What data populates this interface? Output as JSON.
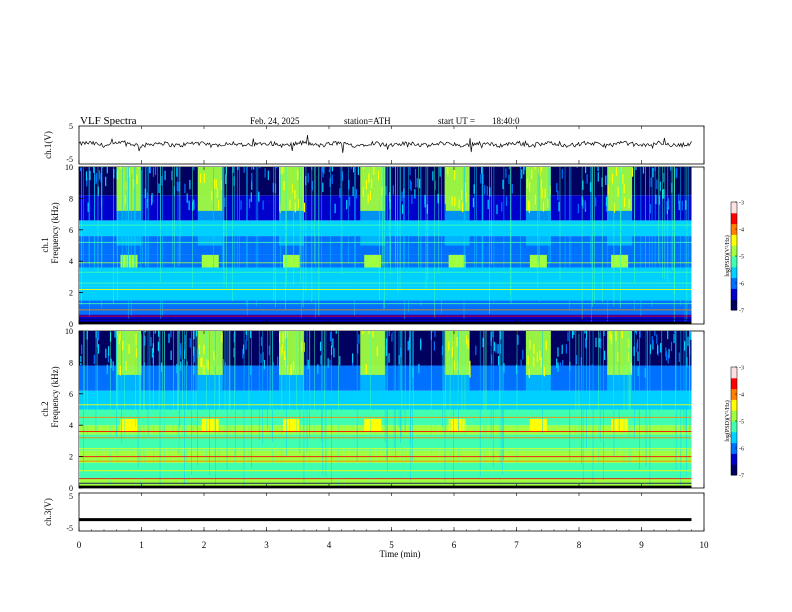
{
  "header": {
    "title": "VLF Spectra",
    "date": "Feb. 24, 2025",
    "station": "station=ATH",
    "start_label": "start UT =",
    "start_time": "18:40:0"
  },
  "colors": {
    "cmap": [
      "#000060",
      "#0000cc",
      "#0070ff",
      "#00d0ff",
      "#40ffb0",
      "#a0ff40",
      "#ffff00",
      "#ff8000",
      "#ff0000",
      "#ffe0e0"
    ],
    "trace": "#000000"
  },
  "chart_data": [
    {
      "type": "line",
      "name": "ch1-timeseries",
      "ylabel": "ch.1(V)",
      "ylim": [
        -5,
        5
      ],
      "ytick_labels": [
        "5",
        "-5"
      ],
      "x_range": [
        0,
        9.8
      ],
      "mean": 0.2,
      "amplitude": 0.8
    },
    {
      "type": "heatmap",
      "name": "ch1-spectrogram",
      "ylabel_top": "ch.1",
      "ylabel": "Frequency (kHz)",
      "ylim": [
        0,
        10
      ],
      "ytick_labels": [
        "0",
        "2",
        "4",
        "6",
        "8",
        "10"
      ],
      "x_range": [
        0,
        9.8
      ],
      "burst_times_min": [
        0.6,
        1.9,
        3.2,
        4.5,
        5.85,
        7.15,
        8.45
      ],
      "burst_width_min": 0.4,
      "colorbar": {
        "label": "log(PSD)(V²/Hz)",
        "ticks": [
          "-3",
          "-4",
          "-5",
          "-6",
          "-7"
        ],
        "range": [
          -7,
          -3
        ]
      }
    },
    {
      "type": "heatmap",
      "name": "ch2-spectrogram",
      "ylabel_top": "ch.2",
      "ylabel": "Frequency (kHz)",
      "ylim": [
        0,
        10
      ],
      "ytick_labels": [
        "0",
        "2",
        "4",
        "6",
        "8",
        "10"
      ],
      "x_range": [
        0,
        9.8
      ],
      "burst_times_min": [
        0.6,
        1.9,
        3.2,
        4.5,
        5.85,
        7.15,
        8.45
      ],
      "burst_width_min": 0.4,
      "colorbar": {
        "label": "log(PSD)(V²/Hz)",
        "ticks": [
          "-3",
          "-4",
          "-5",
          "-6",
          "-7"
        ],
        "range": [
          -7,
          -3
        ]
      }
    },
    {
      "type": "line",
      "name": "ch3-timeseries",
      "ylabel": "ch.3(V)",
      "ylim": [
        -5,
        5
      ],
      "ytick_labels": [
        "5",
        "-5"
      ],
      "x_range": [
        0,
        9.8
      ],
      "mean": -2
    }
  ],
  "xaxis": {
    "label": "Time (min)",
    "ticks": [
      "0",
      "1",
      "2",
      "3",
      "4",
      "5",
      "6",
      "7",
      "8",
      "9",
      "10"
    ],
    "range": [
      0,
      10
    ]
  }
}
